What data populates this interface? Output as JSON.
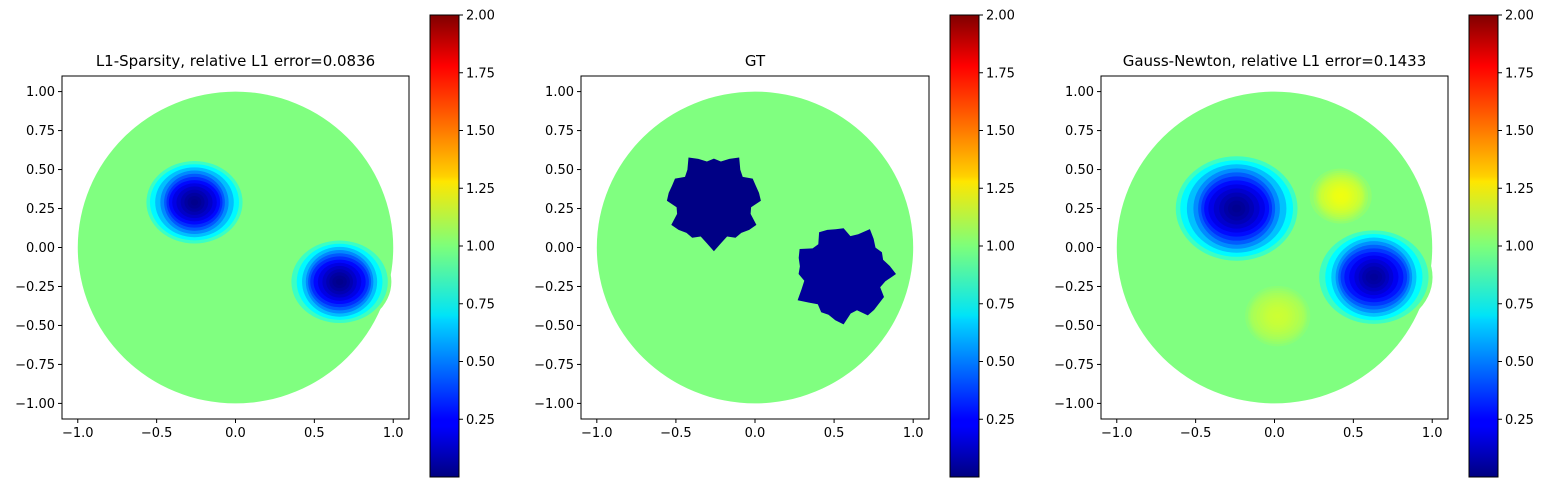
{
  "chart_data": [
    {
      "type": "heatmap",
      "title": "L1-Sparsity, relative L1 error=0.0836",
      "domain": "unit disk",
      "xlim": [
        -1.1,
        1.1
      ],
      "ylim": [
        -1.1,
        1.1
      ],
      "xticks": [
        -1.0,
        -0.5,
        0.0,
        0.5,
        1.0
      ],
      "xtick_labels": [
        "−1.0",
        "−0.5",
        "0.0",
        "0.5",
        "1.0"
      ],
      "yticks": [
        1.0,
        0.75,
        0.5,
        0.25,
        0.0,
        -0.25,
        -0.5,
        -0.75,
        -1.0
      ],
      "ytick_labels": [
        "1.00",
        "0.75",
        "0.50",
        "0.25",
        "0.00",
        "−0.25",
        "−0.50",
        "−0.75",
        "−1.00"
      ],
      "background_value": 1.0,
      "inclusions": [
        {
          "center": [
            -0.26,
            0.29
          ],
          "radius": 0.3,
          "min_value": 0.02,
          "shape": "smooth"
        },
        {
          "center": [
            0.66,
            -0.22
          ],
          "radius": 0.3,
          "min_value": 0.02,
          "shape": "smooth"
        }
      ],
      "colorbar": {
        "colormap": "jet",
        "vmin": 0.0,
        "vmax": 2.0,
        "ticks": [
          2.0,
          1.75,
          1.5,
          1.25,
          1.0,
          0.75,
          0.5,
          0.25
        ],
        "tick_labels": [
          "2.00",
          "1.75",
          "1.50",
          "1.25",
          "1.00",
          "0.75",
          "0.50",
          "0.25"
        ]
      }
    },
    {
      "type": "heatmap",
      "title": "GT",
      "domain": "unit disk",
      "xlim": [
        -1.1,
        1.1
      ],
      "ylim": [
        -1.1,
        1.1
      ],
      "xticks": [
        -1.0,
        -0.5,
        0.0,
        0.5,
        1.0
      ],
      "xtick_labels": [
        "−1.0",
        "−0.5",
        "0.0",
        "0.5",
        "1.0"
      ],
      "yticks": [
        1.0,
        0.75,
        0.5,
        0.25,
        0.0,
        -0.25,
        -0.5,
        -0.75,
        -1.0
      ],
      "ytick_labels": [
        "1.00",
        "0.75",
        "0.50",
        "0.25",
        "0.00",
        "−0.25",
        "−0.50",
        "−0.75",
        "−1.00"
      ],
      "background_value": 1.0,
      "inclusions": [
        {
          "center": [
            -0.26,
            0.3
          ],
          "radius": 0.27,
          "min_value": 0.01,
          "shape": "piecewise-constant"
        },
        {
          "center": [
            0.56,
            -0.17
          ],
          "radius": 0.28,
          "min_value": 0.05,
          "shape": "piecewise-constant"
        }
      ],
      "colorbar": {
        "colormap": "jet",
        "vmin": 0.0,
        "vmax": 2.0,
        "ticks": [
          2.0,
          1.75,
          1.5,
          1.25,
          1.0,
          0.75,
          0.5,
          0.25
        ],
        "tick_labels": [
          "2.00",
          "1.75",
          "1.50",
          "1.25",
          "1.00",
          "0.75",
          "0.50",
          "0.25"
        ]
      }
    },
    {
      "type": "heatmap",
      "title": "Gauss-Newton, relative L1 error=0.1433",
      "domain": "unit disk",
      "xlim": [
        -1.1,
        1.1
      ],
      "ylim": [
        -1.1,
        1.1
      ],
      "xticks": [
        -1.0,
        -0.5,
        0.0,
        0.5,
        1.0
      ],
      "xtick_labels": [
        "−1.0",
        "−0.5",
        "0.0",
        "0.5",
        "1.0"
      ],
      "yticks": [
        1.0,
        0.75,
        0.5,
        0.25,
        0.0,
        -0.25,
        -0.5,
        -0.75,
        -1.0
      ],
      "ytick_labels": [
        "1.00",
        "0.75",
        "0.50",
        "0.25",
        "0.00",
        "−0.25",
        "−0.50",
        "−0.75",
        "−1.00"
      ],
      "background_value": 1.0,
      "inclusions": [
        {
          "center": [
            -0.24,
            0.25
          ],
          "radius": 0.38,
          "min_value": 0.03,
          "shape": "smooth"
        },
        {
          "center": [
            0.63,
            -0.19
          ],
          "radius": 0.34,
          "min_value": 0.05,
          "shape": "smooth"
        },
        {
          "center": [
            0.42,
            0.33
          ],
          "radius": 0.2,
          "min_value": 1.22,
          "shape": "smooth"
        },
        {
          "center": [
            0.02,
            -0.44
          ],
          "radius": 0.22,
          "min_value": 1.15,
          "shape": "smooth"
        }
      ],
      "colorbar": {
        "colormap": "jet",
        "vmin": 0.0,
        "vmax": 2.0,
        "ticks": [
          2.0,
          1.75,
          1.5,
          1.25,
          1.0,
          0.75,
          0.5,
          0.25
        ],
        "tick_labels": [
          "2.00",
          "1.75",
          "1.50",
          "1.25",
          "1.00",
          "0.75",
          "0.50",
          "0.25"
        ]
      }
    }
  ]
}
